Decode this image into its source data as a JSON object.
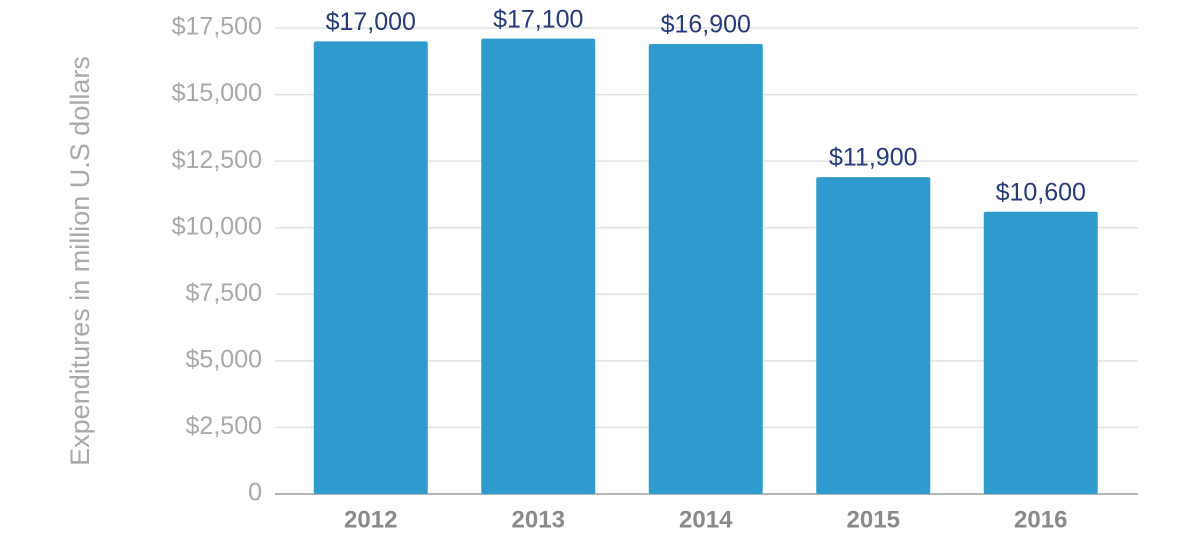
{
  "chart_data": {
    "type": "bar",
    "y_label": "Expenditures in million U.S dollars",
    "categories": [
      "2012",
      "2013",
      "2014",
      "2015",
      "2016"
    ],
    "values": [
      17000,
      17100,
      16900,
      11900,
      10600
    ],
    "value_labels": [
      "$17,000",
      "$17,100",
      "$16,900",
      "$11,900",
      "$10,600"
    ],
    "color": "#2e9acd",
    "ylim": [
      0,
      17500
    ],
    "yticks": [
      0,
      {
        "value": 2500,
        "label": "$2,500"
      },
      {
        "value": 5000,
        "label": "$5,000"
      },
      {
        "value": 7500,
        "label": "$7,500"
      },
      {
        "value": 10000,
        "label": "$10,000"
      },
      {
        "value": 12500,
        "label": "$12,500"
      },
      {
        "value": 15000,
        "label": "$15,000"
      },
      {
        "value": 17500,
        "label": "$17,500"
      }
    ],
    "grid": true
  }
}
